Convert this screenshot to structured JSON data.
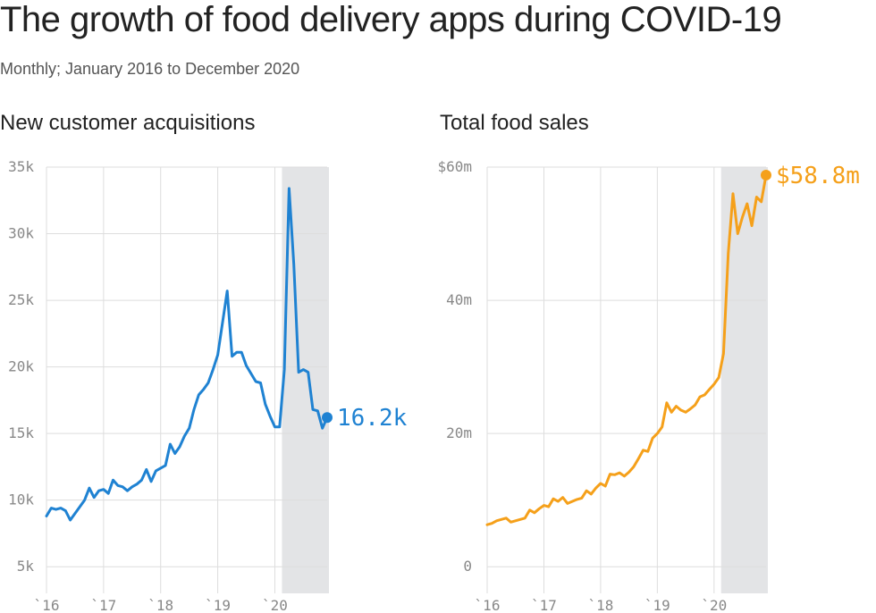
{
  "title": "The growth of food delivery apps during COVID-19",
  "subtitle": "Monthly; January 2016 to December 2020",
  "colors": {
    "left_series": "#1f82d2",
    "right_series": "#f5a01a",
    "shade": "#e3e4e6",
    "grid": "#dddddd"
  },
  "chart_data": [
    {
      "type": "line",
      "title": "New customer acquisitions",
      "x_tick_labels": [
        "`16",
        "`17",
        "`18",
        "`19",
        "`20"
      ],
      "y_tick_labels": [
        "5k",
        "10k",
        "15k",
        "20k",
        "25k",
        "30k",
        "35k"
      ],
      "y_ticks": [
        5000,
        10000,
        15000,
        20000,
        25000,
        30000,
        35000
      ],
      "ylim": [
        3000,
        35000
      ],
      "x_start": "2016-01",
      "x_end": "2020-12",
      "shaded_period": [
        "2020-03",
        "2020-12"
      ],
      "end_label": "16.2k",
      "grid": true,
      "series": [
        {
          "values": [
            8800,
            9400,
            9300,
            9400,
            9200,
            8500,
            9000,
            9500,
            10000,
            10900,
            10200,
            10700,
            10800,
            10500,
            11500,
            11100,
            11000,
            10700,
            11000,
            11200,
            11500,
            12300,
            11400,
            12200,
            12400,
            12600,
            14200,
            13500,
            14000,
            14800,
            15400,
            16800,
            17900,
            18300,
            18800,
            19800,
            20900,
            23300,
            25700,
            20800,
            21100,
            21100,
            20100,
            19500,
            18900,
            18800,
            17200,
            16300,
            15500,
            15500,
            19800,
            33400,
            27700,
            19600,
            19800,
            19600,
            16800,
            16700,
            15400,
            16200
          ]
        }
      ]
    },
    {
      "type": "line",
      "title": "Total food sales",
      "x_tick_labels": [
        "`16",
        "`17",
        "`18",
        "`19",
        "`20"
      ],
      "y_tick_labels": [
        "0",
        "20m",
        "40m",
        "$60m"
      ],
      "y_ticks": [
        0,
        20,
        40,
        60
      ],
      "ylim": [
        -4,
        60
      ],
      "y_unit": "$ millions",
      "x_start": "2016-01",
      "x_end": "2020-12",
      "shaded_period": [
        "2020-03",
        "2020-12"
      ],
      "end_label": "$58.8m",
      "grid": true,
      "series": [
        {
          "values": [
            6.3,
            6.5,
            6.9,
            7.1,
            7.3,
            6.7,
            6.9,
            7.1,
            7.3,
            8.5,
            8.1,
            8.7,
            9.2,
            9.0,
            10.2,
            9.8,
            10.4,
            9.5,
            9.8,
            10.1,
            10.3,
            11.4,
            10.9,
            11.8,
            12.5,
            12.1,
            13.9,
            13.8,
            14.1,
            13.6,
            14.2,
            15.0,
            16.2,
            17.5,
            17.3,
            19.3,
            20.0,
            21.0,
            24.6,
            23.2,
            24.1,
            23.5,
            23.2,
            23.7,
            24.3,
            25.5,
            25.8,
            26.6,
            27.4,
            28.4,
            32.0,
            47.0,
            56.0,
            50.0,
            52.5,
            54.5,
            51.2,
            55.5,
            54.8,
            58.8
          ]
        }
      ]
    }
  ]
}
